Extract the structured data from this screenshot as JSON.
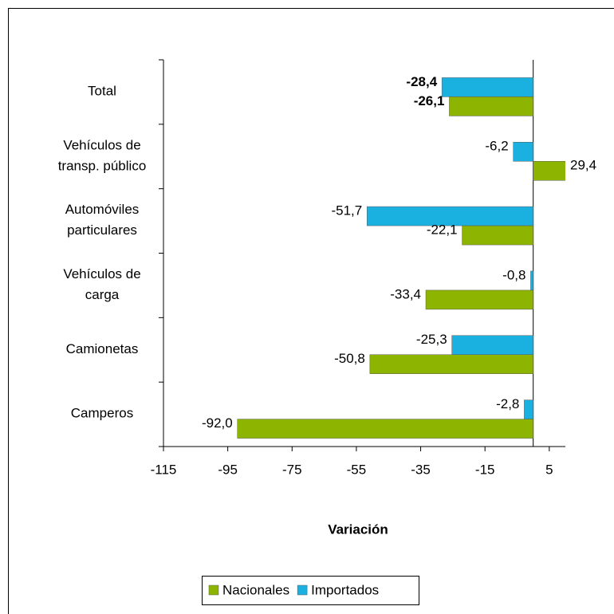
{
  "chart_data": {
    "type": "barh",
    "x_label": "Variación",
    "categories": [
      "Total",
      "Vehículos de\ntransp. público",
      "Automóviles\nparticulares",
      "Vehículos de\ncarga",
      "Camionetas",
      "Camperos"
    ],
    "series": [
      {
        "name": "Nacionales",
        "color": "#8cb400",
        "values": [
          -26.1,
          29.4,
          -22.1,
          -33.4,
          -50.8,
          -92.0
        ],
        "value_labels": [
          "-26,1",
          "29,4",
          "-22,1",
          "-33,4",
          "-50,8",
          "-92,0"
        ]
      },
      {
        "name": "Importados",
        "color": "#1ab0e0",
        "values": [
          -28.4,
          -6.2,
          -51.7,
          -0.8,
          -25.3,
          -2.8
        ],
        "value_labels": [
          "-28,4",
          "-6,2",
          "-51,7",
          "-0,8",
          "-25,3",
          "-2,8"
        ]
      }
    ],
    "xlim": [
      -115,
      10
    ],
    "xticks": [
      -115,
      -95,
      -75,
      -55,
      -35,
      -15,
      5
    ],
    "legend": "bottom"
  }
}
